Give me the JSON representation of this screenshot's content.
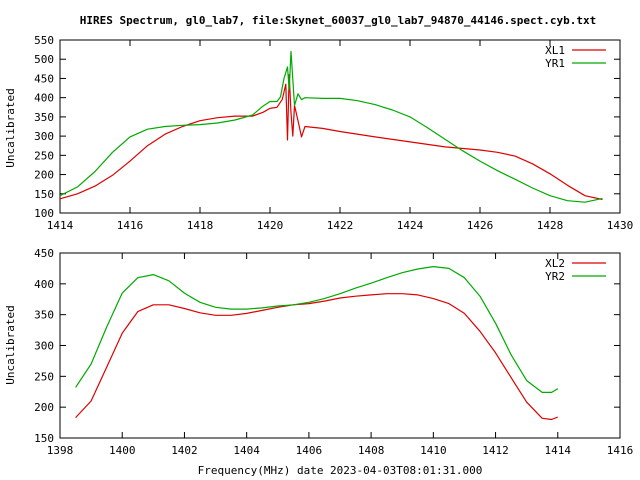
{
  "title": "HIRES Spectrum, gl0_lab7, file:Skynet_60037_gl0_lab7_94870_44146.spect.cyb.txt",
  "colors": {
    "red": "#dd0000",
    "green": "#00aa00"
  },
  "chart_data": [
    {
      "type": "line",
      "ylabel": "Uncalibrated",
      "xlim": [
        1414,
        1430
      ],
      "ylim": [
        100,
        550
      ],
      "x_ticks": [
        "1414",
        "1416",
        "1418",
        "1420",
        "1422",
        "1424",
        "1426",
        "1428",
        "1430"
      ],
      "y_ticks": [
        "100",
        "150",
        "200",
        "250",
        "300",
        "350",
        "400",
        "450",
        "500",
        "550"
      ],
      "legend_position": "top-right",
      "series": [
        {
          "name": "XL1",
          "color": "#dd0000",
          "x": [
            1414.0,
            1414.5,
            1415.0,
            1415.5,
            1416.0,
            1416.5,
            1417.0,
            1417.5,
            1418.0,
            1418.5,
            1419.0,
            1419.5,
            1419.8,
            1420.0,
            1420.2,
            1420.35,
            1420.45,
            1420.5,
            1420.55,
            1420.6,
            1420.65,
            1420.7,
            1420.8,
            1420.9,
            1421.0,
            1421.5,
            1422.0,
            1423.0,
            1424.0,
            1425.0,
            1426.0,
            1426.5,
            1427.0,
            1427.5,
            1428.0,
            1428.5,
            1429.0,
            1429.5
          ],
          "values": [
            137,
            150,
            170,
            198,
            235,
            275,
            305,
            325,
            340,
            348,
            352,
            352,
            362,
            372,
            375,
            395,
            435,
            290,
            460,
            360,
            300,
            380,
            340,
            298,
            325,
            320,
            312,
            298,
            285,
            272,
            264,
            258,
            248,
            228,
            202,
            172,
            145,
            135
          ]
        },
        {
          "name": "YR1",
          "color": "#00aa00",
          "x": [
            1414.0,
            1414.5,
            1415.0,
            1415.5,
            1416.0,
            1416.5,
            1417.0,
            1417.5,
            1418.0,
            1418.5,
            1419.0,
            1419.5,
            1419.8,
            1420.0,
            1420.2,
            1420.3,
            1420.4,
            1420.5,
            1420.55,
            1420.6,
            1420.7,
            1420.8,
            1420.9,
            1421.0,
            1421.5,
            1422.0,
            1422.5,
            1423.0,
            1423.5,
            1424.0,
            1424.5,
            1425.0,
            1425.5,
            1426.0,
            1426.5,
            1427.0,
            1427.5,
            1428.0,
            1428.5,
            1429.0,
            1429.5
          ],
          "values": [
            145,
            168,
            208,
            258,
            298,
            318,
            325,
            328,
            330,
            334,
            342,
            355,
            378,
            390,
            390,
            402,
            450,
            480,
            420,
            520,
            380,
            410,
            395,
            400,
            398,
            398,
            392,
            382,
            368,
            350,
            322,
            292,
            262,
            235,
            210,
            188,
            165,
            145,
            132,
            128,
            138
          ]
        }
      ]
    },
    {
      "type": "line",
      "xlabel": "Frequency(MHz) date 2023-04-03T08:01:31.000",
      "ylabel": "Uncalibrated",
      "xlim": [
        1398,
        1416
      ],
      "ylim": [
        150,
        450
      ],
      "x_ticks": [
        "1398",
        "1400",
        "1402",
        "1404",
        "1406",
        "1408",
        "1410",
        "1412",
        "1414",
        "1416"
      ],
      "y_ticks": [
        "150",
        "200",
        "250",
        "300",
        "350",
        "400",
        "450"
      ],
      "legend_position": "top-right",
      "series": [
        {
          "name": "XL2",
          "color": "#dd0000",
          "x": [
            1398.5,
            1399.0,
            1399.5,
            1400.0,
            1400.5,
            1401.0,
            1401.5,
            1402.0,
            1402.5,
            1403.0,
            1403.5,
            1404.0,
            1404.5,
            1405.0,
            1405.5,
            1406.0,
            1406.5,
            1407.0,
            1407.5,
            1408.0,
            1408.5,
            1409.0,
            1409.5,
            1410.0,
            1410.5,
            1411.0,
            1411.5,
            1412.0,
            1412.5,
            1413.0,
            1413.5,
            1413.8,
            1414.0
          ],
          "values": [
            183,
            210,
            265,
            320,
            355,
            366,
            366,
            360,
            353,
            349,
            349,
            352,
            357,
            362,
            366,
            368,
            372,
            377,
            380,
            382,
            384,
            384,
            382,
            376,
            368,
            352,
            323,
            288,
            248,
            208,
            182,
            180,
            184
          ]
        },
        {
          "name": "YR2",
          "color": "#00aa00",
          "x": [
            1398.5,
            1399.0,
            1399.5,
            1400.0,
            1400.5,
            1401.0,
            1401.5,
            1402.0,
            1402.5,
            1403.0,
            1403.5,
            1404.0,
            1404.5,
            1405.0,
            1405.5,
            1406.0,
            1406.5,
            1407.0,
            1407.5,
            1408.0,
            1408.5,
            1409.0,
            1409.5,
            1410.0,
            1410.5,
            1411.0,
            1411.5,
            1412.0,
            1412.5,
            1413.0,
            1413.5,
            1413.8,
            1414.0
          ],
          "values": [
            232,
            270,
            330,
            385,
            410,
            415,
            405,
            385,
            370,
            362,
            359,
            359,
            361,
            364,
            366,
            370,
            376,
            384,
            393,
            401,
            410,
            418,
            424,
            428,
            425,
            410,
            380,
            336,
            285,
            243,
            224,
            224,
            230
          ]
        }
      ]
    }
  ]
}
